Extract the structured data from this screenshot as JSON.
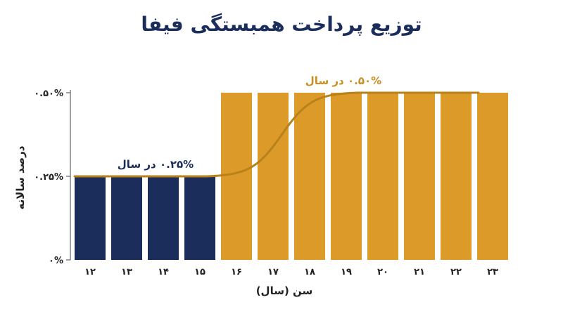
{
  "chart_data": {
    "type": "bar",
    "title": "توزیع پرداخت همبستگی فیفا",
    "xlabel": "سن (سال)",
    "ylabel": "درصد سالانه",
    "categories": [
      "۱۲",
      "۱۳",
      "۱۴",
      "۱۵",
      "۱۶",
      "۱۷",
      "۱۸",
      "۱۹",
      "۲۰",
      "۲۱",
      "۲۲",
      "۲۳"
    ],
    "values": [
      0.25,
      0.25,
      0.25,
      0.25,
      0.5,
      0.5,
      0.5,
      0.5,
      0.5,
      0.5,
      0.5,
      0.5
    ],
    "ylim": [
      0,
      0.5
    ],
    "yticks": [
      {
        "value": 0,
        "label": "۰%"
      },
      {
        "value": 0.25,
        "label": "۰.۲۵%"
      },
      {
        "value": 0.5,
        "label": "۰.۵۰%"
      }
    ],
    "grid": false,
    "colors": {
      "low": "#1b2d5b",
      "high": "#dc9a28",
      "trend": "#b98119",
      "annot_low": "#1b2d5b",
      "annot_high": "#c98f22"
    },
    "annotations": {
      "low": "۰.۲۵% در سال",
      "high": "۰.۵۰% در سال"
    },
    "trend_line": "sigmoid from 0.25% (age 12–15) to 0.50% (age 19–23)"
  }
}
